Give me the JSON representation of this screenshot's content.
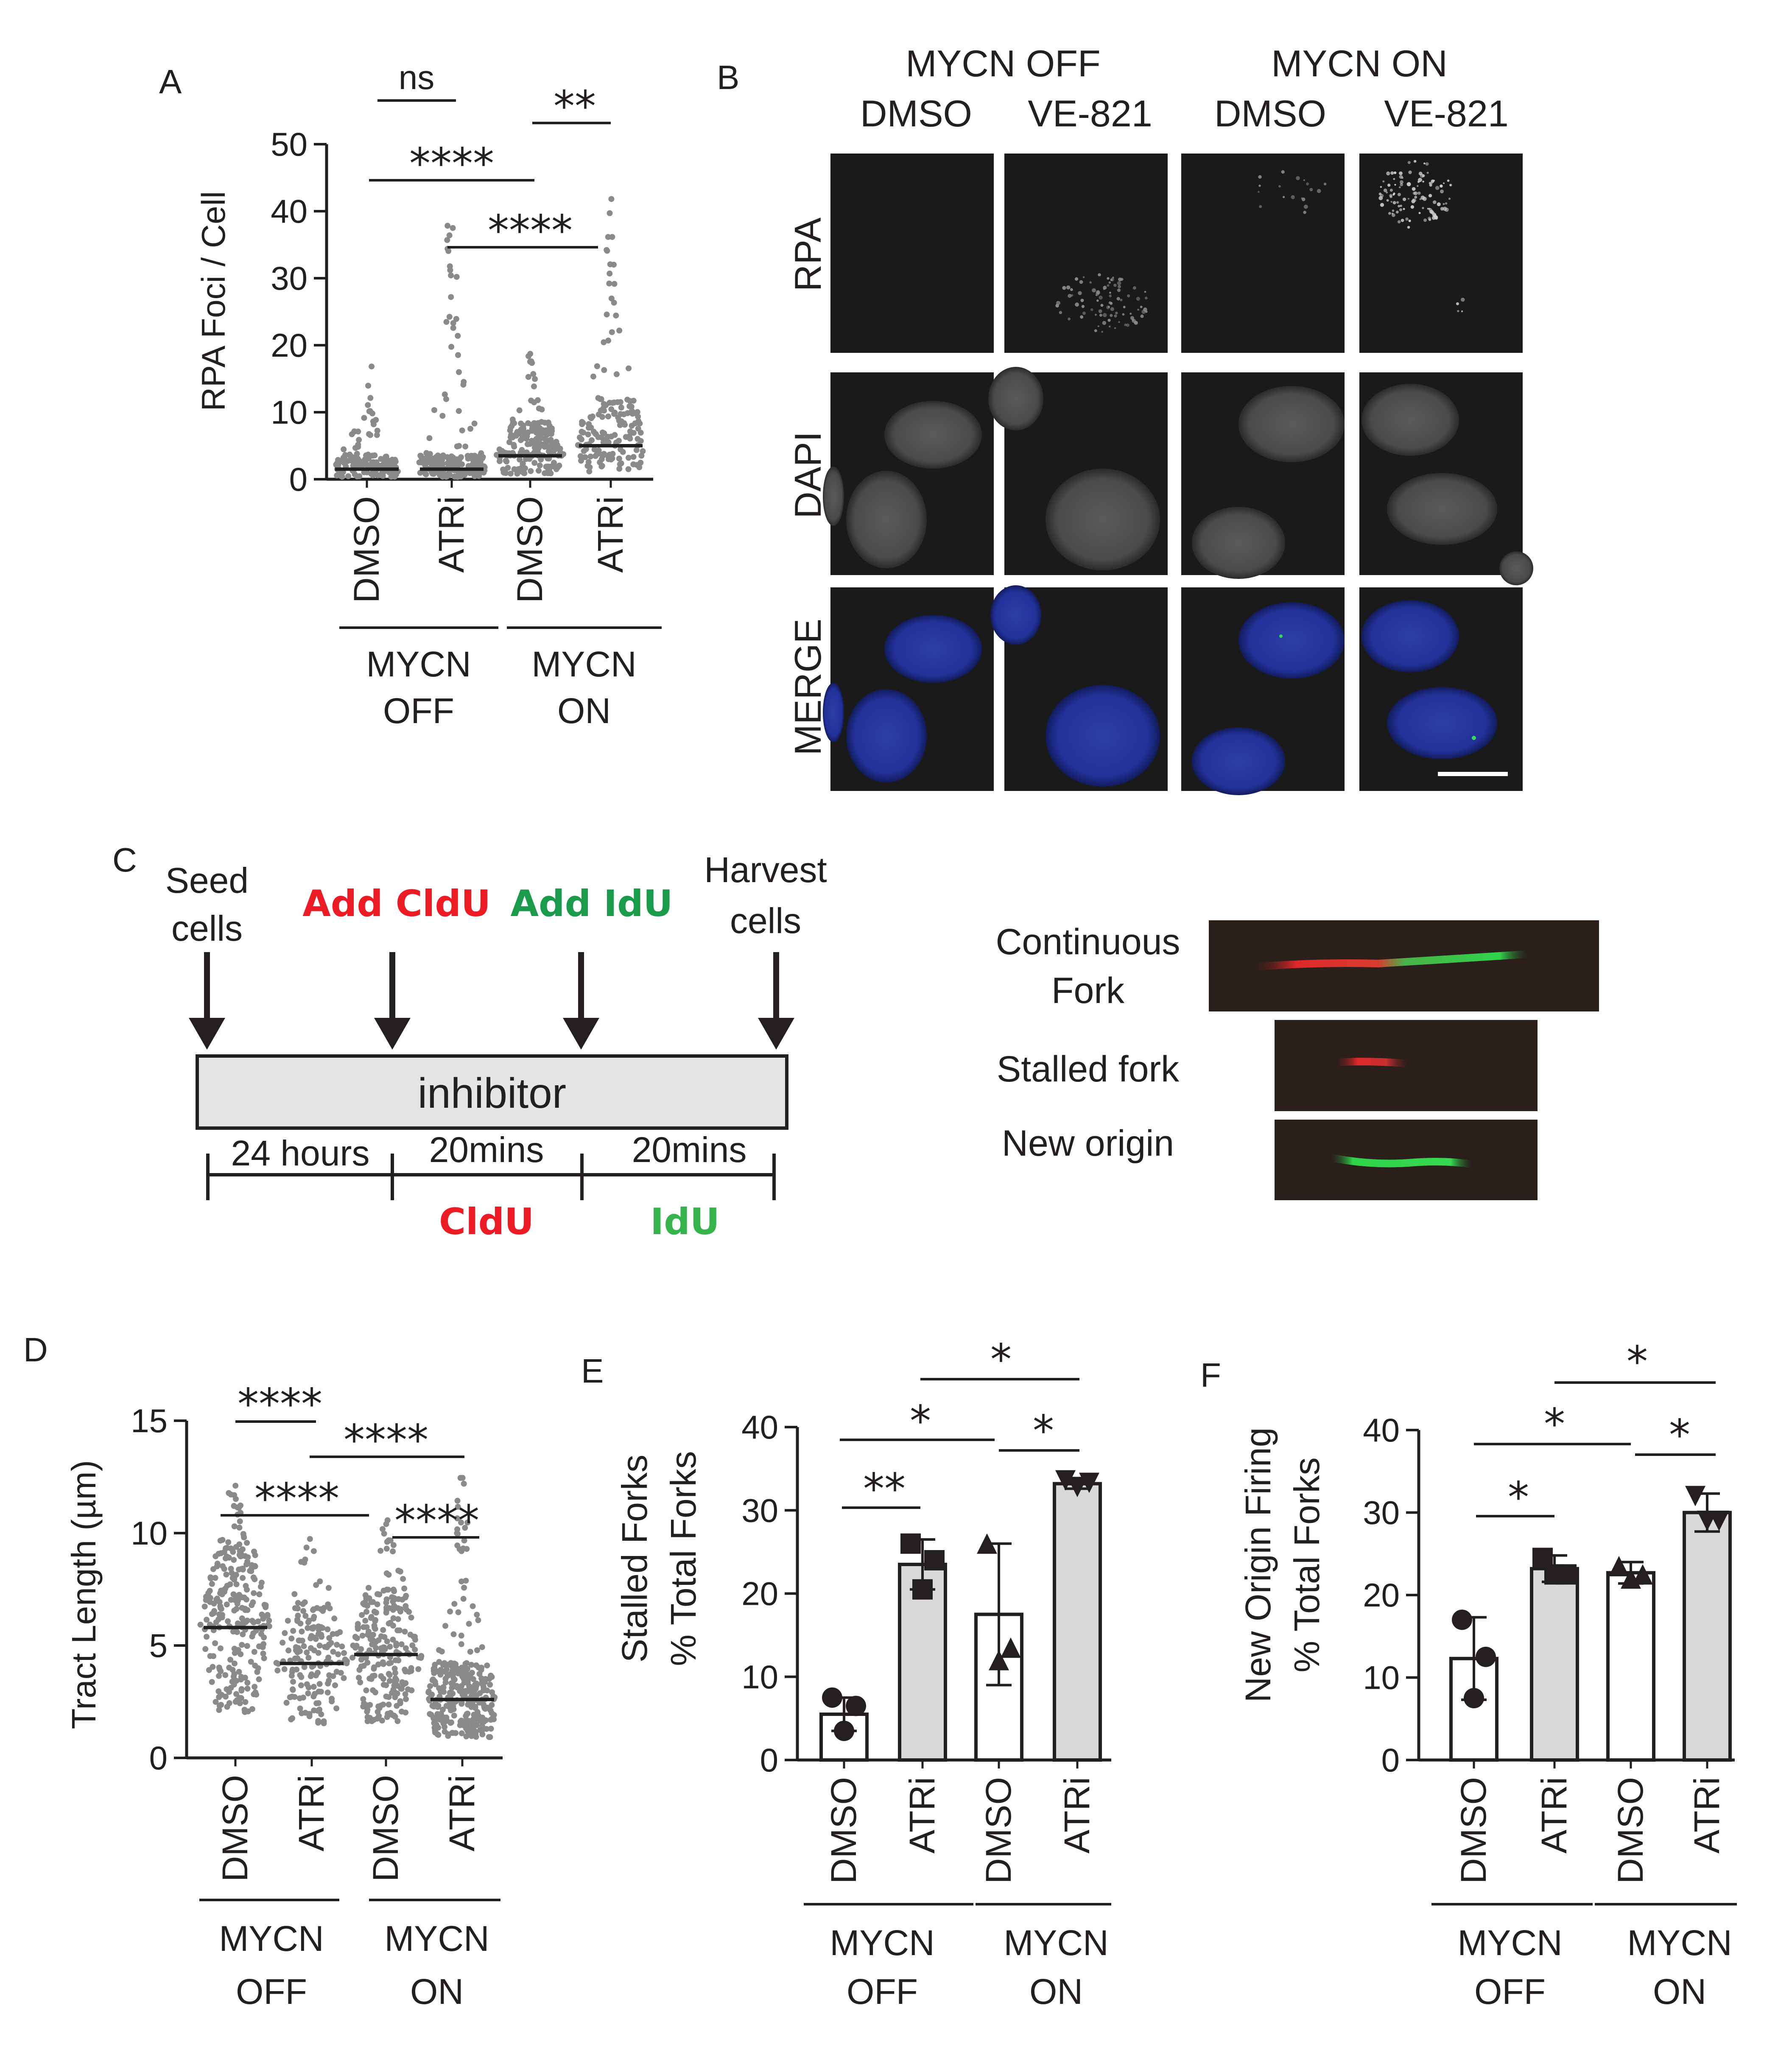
{
  "panel_a": {
    "letter": "A",
    "ylabel": "RPA Foci / Cell",
    "yticks": [
      "50",
      "40",
      "30",
      "20",
      "10",
      "0"
    ],
    "categories": [
      "DMSO",
      "ATRi",
      "DMSO",
      "ATRi"
    ],
    "groups": [
      "MYCN OFF",
      "MYCN ON"
    ],
    "sig": [
      "ns",
      "****",
      "****",
      "**"
    ]
  },
  "panel_b": {
    "letter": "B",
    "groups": [
      "MYCN OFF",
      "MYCN ON"
    ],
    "columns": [
      "DMSO",
      "VE-821",
      "DMSO",
      "VE-821"
    ],
    "rows": [
      "RPA",
      "DAPI",
      "MERGE"
    ]
  },
  "panel_c": {
    "letter": "C",
    "steps": [
      "Seed cells",
      "Add CldU",
      "Add IdU",
      "Harvest cells"
    ],
    "bar_label": "inhibitor",
    "durations": [
      "24 hours",
      "20mins",
      "20mins"
    ],
    "labels": [
      "CldU",
      "IdU"
    ],
    "fork_types": [
      "Continuous Fork",
      "Stalled fork",
      "New origin"
    ],
    "colors": {
      "cldu": "#ed1c24",
      "idu": "#1a9a4b"
    }
  },
  "panel_d": {
    "letter": "D",
    "ylabel": "Tract Length (µm)",
    "yticks": [
      "15",
      "10",
      "5",
      "0"
    ],
    "categories": [
      "DMSO",
      "ATRi",
      "DMSO",
      "ATRi"
    ],
    "groups": [
      "MYCN OFF",
      "MYCN ON"
    ],
    "sig": [
      "****",
      "****",
      "****",
      "****"
    ]
  },
  "panel_e": {
    "letter": "E",
    "ylabel_1": "Stalled Forks",
    "ylabel_2": "% Total Forks",
    "yticks": [
      "40",
      "30",
      "20",
      "10",
      "0"
    ],
    "categories": [
      "DMSO",
      "ATRi",
      "DMSO",
      "ATRi"
    ],
    "groups": [
      "MYCN OFF",
      "MYCN ON"
    ],
    "sig": [
      "**",
      "*",
      "*",
      "*"
    ]
  },
  "panel_f": {
    "letter": "F",
    "ylabel_1": "New Origin Firing",
    "ylabel_2": "% Total Forks",
    "yticks": [
      "40",
      "30",
      "20",
      "10",
      "0"
    ],
    "categories": [
      "DMSO",
      "ATRi",
      "DMSO",
      "ATRi"
    ],
    "groups": [
      "MYCN OFF",
      "MYCN ON"
    ],
    "sig": [
      "*",
      "*",
      "*",
      "*"
    ]
  },
  "chart_data": [
    {
      "type": "scatter",
      "panel": "A",
      "ylabel": "RPA Foci / Cell",
      "ylim": [
        0,
        50
      ],
      "categories": [
        "MYCN OFF DMSO",
        "MYCN OFF ATRi",
        "MYCN ON DMSO",
        "MYCN ON ATRi"
      ],
      "medians": [
        1.5,
        1.5,
        3.5,
        5
      ],
      "max_values": [
        17,
        44,
        19,
        42
      ]
    },
    {
      "type": "scatter",
      "panel": "D",
      "ylabel": "Tract Length (µm)",
      "ylim": [
        0,
        15
      ],
      "categories": [
        "MYCN OFF DMSO",
        "MYCN OFF ATRi",
        "MYCN ON DMSO",
        "MYCN ON ATRi"
      ],
      "medians": [
        5.8,
        4.2,
        4.6,
        2.6
      ],
      "max_values": [
        12.3,
        10.7,
        10.7,
        12.5
      ]
    },
    {
      "type": "bar",
      "panel": "E",
      "ylabel": "Stalled Forks % Total Forks",
      "ylim": [
        0,
        40
      ],
      "categories": [
        "MYCN OFF DMSO",
        "MYCN OFF ATRi",
        "MYCN ON DMSO",
        "MYCN ON ATRi"
      ],
      "values": [
        5.5,
        23.5,
        17.5,
        33.2
      ],
      "errors": [
        2.0,
        3.0,
        8.5,
        0.6
      ],
      "points": [
        [
          7.5,
          6.5,
          3.5
        ],
        [
          26,
          24,
          20.5
        ],
        [
          26,
          13.5,
          12
        ],
        [
          33.6,
          33.3,
          32.8
        ]
      ]
    },
    {
      "type": "bar",
      "panel": "F",
      "ylabel": "New Origin Firing % Total Forks",
      "ylim": [
        0,
        40
      ],
      "categories": [
        "MYCN OFF DMSO",
        "MYCN OFF ATRi",
        "MYCN ON DMSO",
        "MYCN ON ATRi"
      ],
      "values": [
        12.3,
        23.2,
        22.7,
        30.0
      ],
      "errors": [
        5.0,
        1.6,
        1.3,
        2.3
      ],
      "points": [
        [
          17,
          12.5,
          7.5
        ],
        [
          24.5,
          22.5,
          22.5
        ],
        [
          23.5,
          22.5,
          22
        ],
        [
          32,
          29,
          29
        ]
      ]
    }
  ]
}
